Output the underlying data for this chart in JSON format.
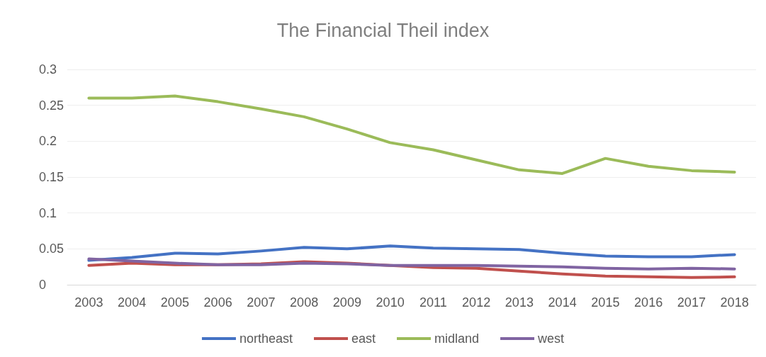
{
  "chart_data": {
    "type": "line",
    "title": "The Financial Theil index",
    "categories": [
      "2003",
      "2004",
      "2005",
      "2006",
      "2007",
      "2008",
      "2009",
      "2010",
      "2011",
      "2012",
      "2013",
      "2014",
      "2015",
      "2016",
      "2017",
      "2018"
    ],
    "series": [
      {
        "name": "northeast",
        "color": "#4472c4",
        "values": [
          0.034,
          0.038,
          0.044,
          0.043,
          0.047,
          0.052,
          0.05,
          0.054,
          0.051,
          0.05,
          0.049,
          0.044,
          0.04,
          0.039,
          0.039,
          0.042
        ]
      },
      {
        "name": "east",
        "color": "#c0504d",
        "values": [
          0.027,
          0.03,
          0.028,
          0.028,
          0.029,
          0.032,
          0.03,
          0.027,
          0.024,
          0.023,
          0.019,
          0.015,
          0.012,
          0.011,
          0.01,
          0.011
        ]
      },
      {
        "name": "midland",
        "color": "#9bbb59",
        "values": [
          0.26,
          0.26,
          0.263,
          0.255,
          0.245,
          0.234,
          0.217,
          0.198,
          0.188,
          0.174,
          0.16,
          0.155,
          0.176,
          0.165,
          0.159,
          0.157
        ]
      },
      {
        "name": "west",
        "color": "#8064a2",
        "values": [
          0.036,
          0.033,
          0.03,
          0.028,
          0.028,
          0.03,
          0.029,
          0.027,
          0.027,
          0.027,
          0.026,
          0.025,
          0.023,
          0.022,
          0.023,
          0.022
        ]
      }
    ],
    "ylim": [
      0,
      0.3
    ],
    "yticks": [
      0,
      0.05,
      0.1,
      0.15,
      0.2,
      0.25,
      0.3
    ],
    "grid": "y",
    "legend": "bottom",
    "marker": "none",
    "line_style": "solid"
  }
}
